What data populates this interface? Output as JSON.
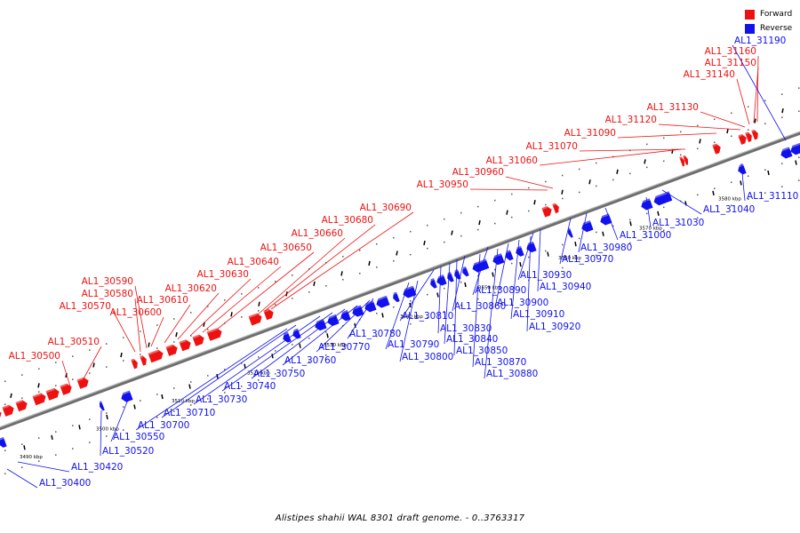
{
  "legend": {
    "forward_label": "Forward",
    "reverse_label": "Reverse",
    "forward_color": "#ee1111",
    "reverse_color": "#1111ee"
  },
  "caption": "Alistipes shahii WAL 8301 draft genome. - 0..3763317",
  "colors": {
    "forward": "#ee1111",
    "reverse": "#1111ee",
    "backbone": "#6e6e6e"
  },
  "ticks": [
    "3490 kbp",
    "3500 kbp",
    "3510 kbp",
    "3520 kbp",
    "3530 kbp",
    "3540 kbp",
    "3550 kbp",
    "3560 kbp",
    "3570 kbp",
    "3580 kbp"
  ],
  "forward_genes": [
    "AL1_30500",
    "AL1_30510",
    "AL1_30570",
    "AL1_30580",
    "AL1_30590",
    "AL1_30600",
    "AL1_30610",
    "AL1_30620",
    "AL1_30630",
    "AL1_30640",
    "AL1_30650",
    "AL1_30660",
    "AL1_30680",
    "AL1_30690",
    "AL1_30950",
    "AL1_30960",
    "AL1_31060",
    "AL1_31070",
    "AL1_31090",
    "AL1_31120",
    "AL1_31130",
    "AL1_31140",
    "AL1_31150",
    "AL1_31160"
  ],
  "reverse_genes": [
    "AL1_30400",
    "AL1_30420",
    "AL1_30520",
    "AL1_30550",
    "AL1_30700",
    "AL1_30710",
    "AL1_30730",
    "AL1_30740",
    "AL1_30750",
    "AL1_30760",
    "AL1_30770",
    "AL1_30780",
    "AL1_30790",
    "AL1_30800",
    "AL1_30810",
    "AL1_30830",
    "AL1_30840",
    "AL1_30850",
    "AL1_30860",
    "AL1_30870",
    "AL1_30880",
    "AL1_30890",
    "AL1_30900",
    "AL1_30910",
    "AL1_30920",
    "AL1_30930",
    "AL1_30940",
    "AL1_30970",
    "AL1_30980",
    "AL1_31000",
    "AL1_31030",
    "AL1_31040",
    "AL1_31110",
    "AL1_31190"
  ]
}
